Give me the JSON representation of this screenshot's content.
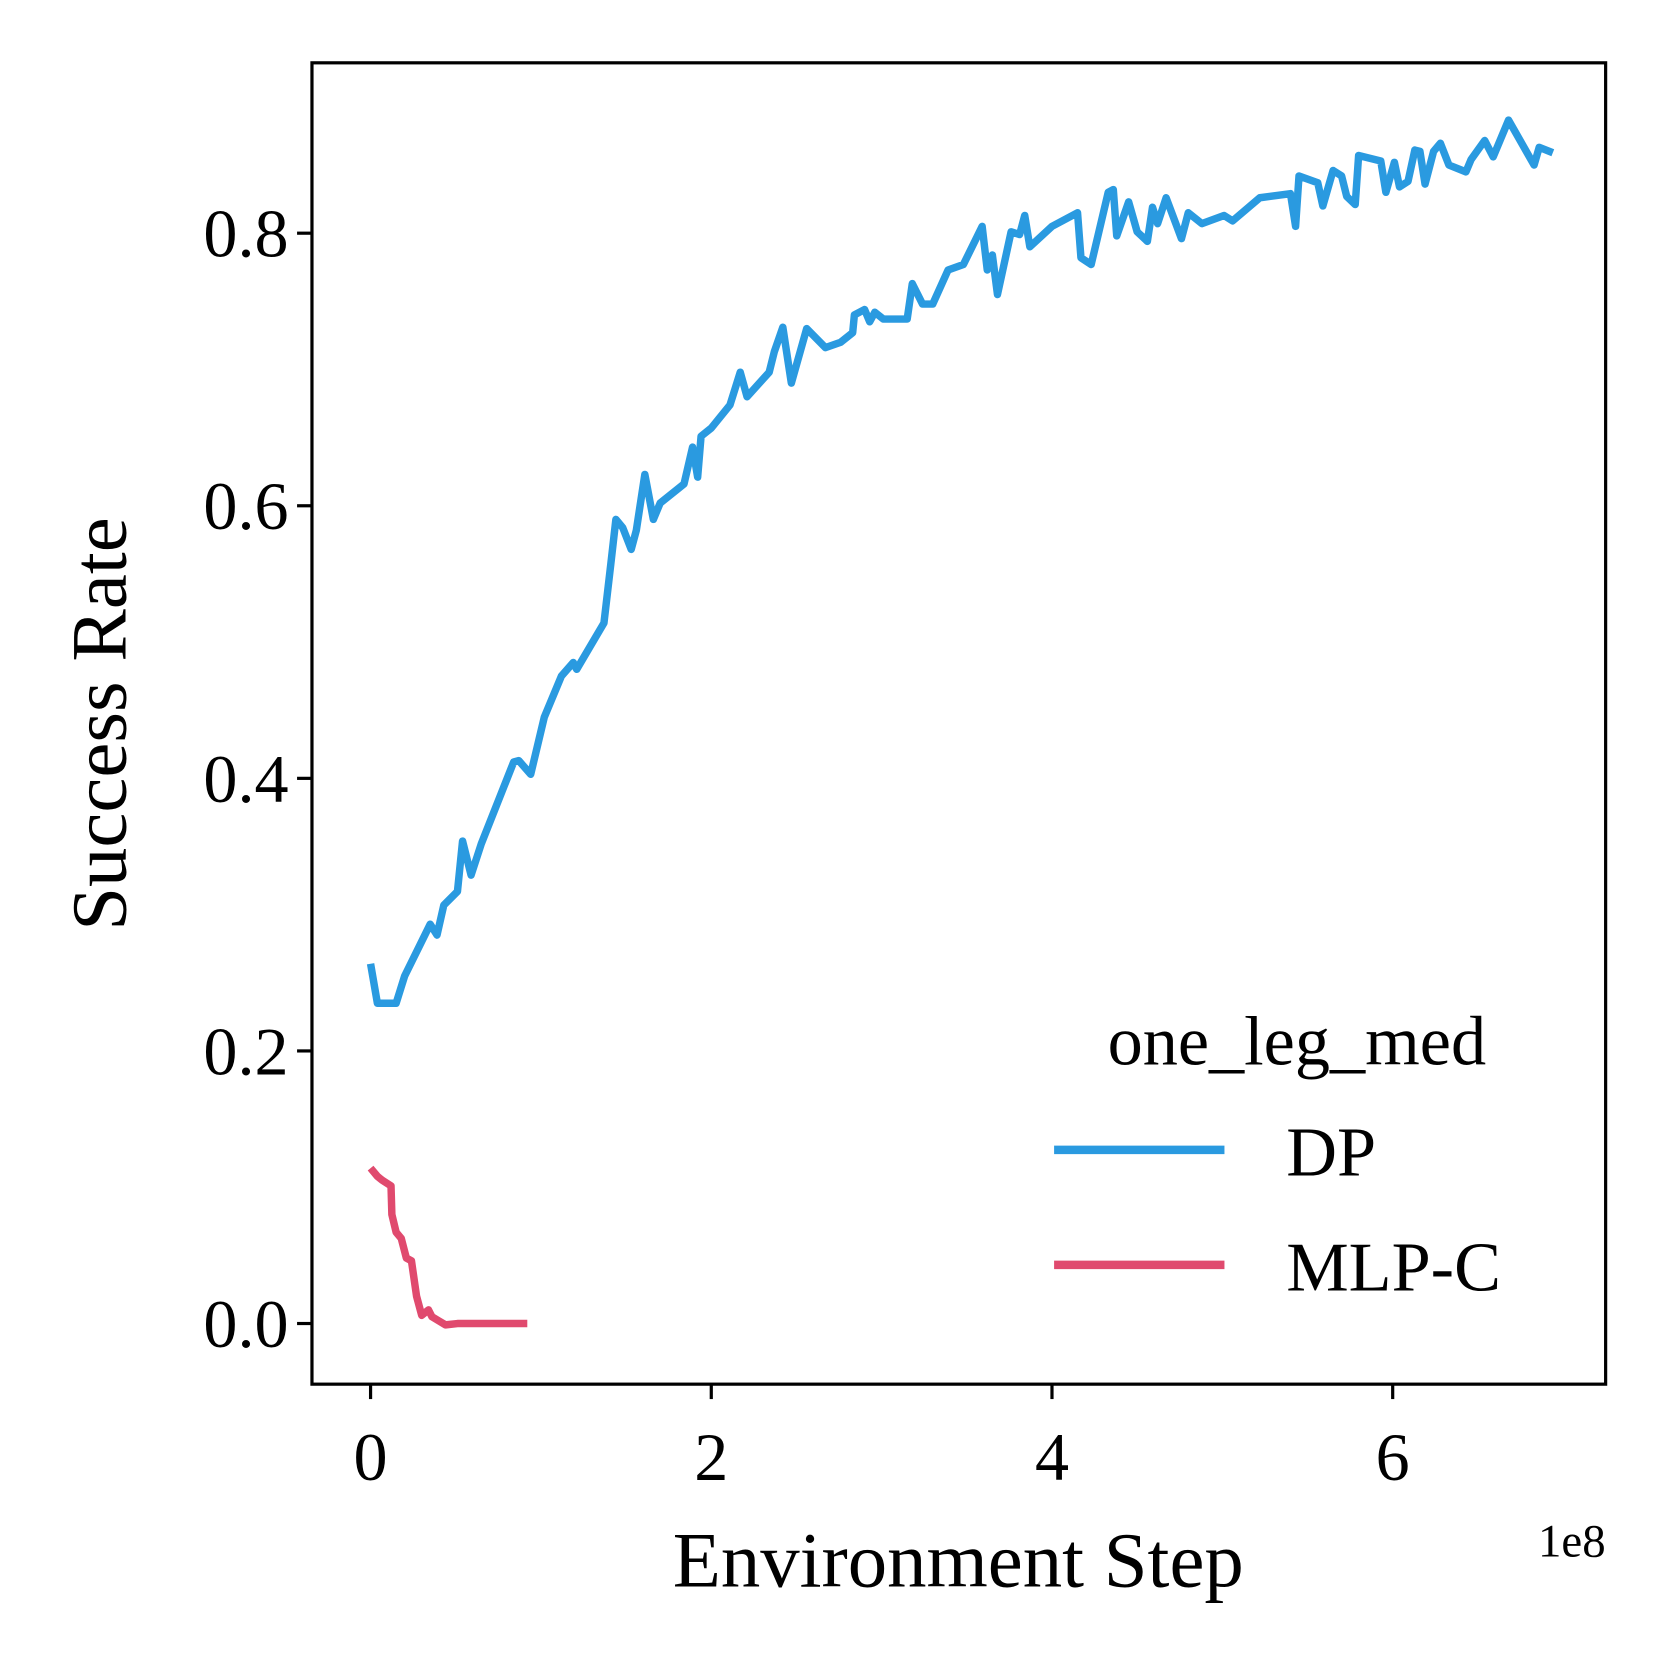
{
  "chart_data": {
    "type": "line",
    "xlabel": "Environment Step",
    "ylabel": "Success Rate",
    "x_offset_label": "1e8",
    "legend_title": "one_leg_med",
    "legend": "lower right",
    "xlim": [
      -0.344,
      7.25
    ],
    "xticks": [
      0,
      2,
      4,
      6
    ],
    "ylim": [
      -0.0445,
      0.925
    ],
    "yticks": [
      {
        "value": 0,
        "label": "0.0"
      },
      0.2,
      0.4,
      0.6,
      0.8
    ],
    "series": [
      {
        "name": "DP",
        "color": "#2a9ae0",
        "x": [
          0,
          0.04,
          0.15,
          0.2,
          0.35,
          0.39,
          0.43,
          0.51,
          0.54,
          0.59,
          0.65,
          0.84,
          0.87,
          0.94,
          1.02,
          1.12,
          1.19,
          1.21,
          1.37,
          1.41,
          1.44,
          1.48,
          1.53,
          1.56,
          1.61,
          1.66,
          1.7,
          1.81,
          1.84,
          1.89,
          1.92,
          1.94,
          2.0,
          2.11,
          2.17,
          2.21,
          2.34,
          2.37,
          2.42,
          2.47,
          2.56,
          2.67,
          2.76,
          2.83,
          2.84,
          2.9,
          2.93,
          2.96,
          3.01,
          3.15,
          3.18,
          3.24,
          3.3,
          3.39,
          3.48,
          3.59,
          3.62,
          3.65,
          3.68,
          3.76,
          3.81,
          3.84,
          3.87,
          4.0,
          4.15,
          4.17,
          4.23,
          4.33,
          4.36,
          4.38,
          4.45,
          4.5,
          4.56,
          4.59,
          4.62,
          4.67,
          4.76,
          4.8,
          4.88,
          5.01,
          5.06,
          5.22,
          5.4,
          5.43,
          5.45,
          5.56,
          5.59,
          5.65,
          5.7,
          5.73,
          5.78,
          5.8,
          5.93,
          5.96,
          6.01,
          6.04,
          6.09,
          6.13,
          6.16,
          6.19,
          6.24,
          6.28,
          6.33,
          6.43,
          6.46,
          6.54,
          6.59,
          6.68,
          6.83,
          6.86,
          6.94
        ],
        "values": [
          0.264,
          0.235,
          0.235,
          0.255,
          0.293,
          0.285,
          0.307,
          0.317,
          0.354,
          0.329,
          0.352,
          0.412,
          0.413,
          0.403,
          0.445,
          0.475,
          0.485,
          0.48,
          0.514,
          0.557,
          0.59,
          0.584,
          0.568,
          0.582,
          0.623,
          0.59,
          0.602,
          0.613,
          0.616,
          0.643,
          0.621,
          0.651,
          0.657,
          0.674,
          0.698,
          0.68,
          0.698,
          0.713,
          0.731,
          0.69,
          0.73,
          0.716,
          0.72,
          0.727,
          0.74,
          0.744,
          0.735,
          0.742,
          0.737,
          0.737,
          0.763,
          0.748,
          0.748,
          0.773,
          0.777,
          0.805,
          0.773,
          0.784,
          0.755,
          0.801,
          0.799,
          0.813,
          0.79,
          0.805,
          0.815,
          0.782,
          0.777,
          0.83,
          0.832,
          0.798,
          0.823,
          0.801,
          0.794,
          0.819,
          0.807,
          0.826,
          0.796,
          0.815,
          0.807,
          0.813,
          0.809,
          0.826,
          0.829,
          0.805,
          0.842,
          0.837,
          0.82,
          0.846,
          0.842,
          0.827,
          0.821,
          0.857,
          0.853,
          0.83,
          0.852,
          0.834,
          0.838,
          0.861,
          0.86,
          0.836,
          0.86,
          0.866,
          0.85,
          0.845,
          0.854,
          0.868,
          0.856,
          0.883,
          0.85,
          0.863,
          0.859
        ]
      },
      {
        "name": "MLP-C",
        "color": "#e04a6e",
        "x": [
          0,
          0.04,
          0.07,
          0.12,
          0.125,
          0.15,
          0.18,
          0.21,
          0.24,
          0.27,
          0.3,
          0.34,
          0.36,
          0.4,
          0.44,
          0.51,
          0.57,
          0.92
        ],
        "values": [
          0.114,
          0.108,
          0.105,
          0.101,
          0.08,
          0.067,
          0.0625,
          0.048,
          0.046,
          0.02,
          0.006,
          0.01,
          0.005,
          0.002,
          -0.001,
          0,
          0,
          0
        ]
      }
    ]
  }
}
